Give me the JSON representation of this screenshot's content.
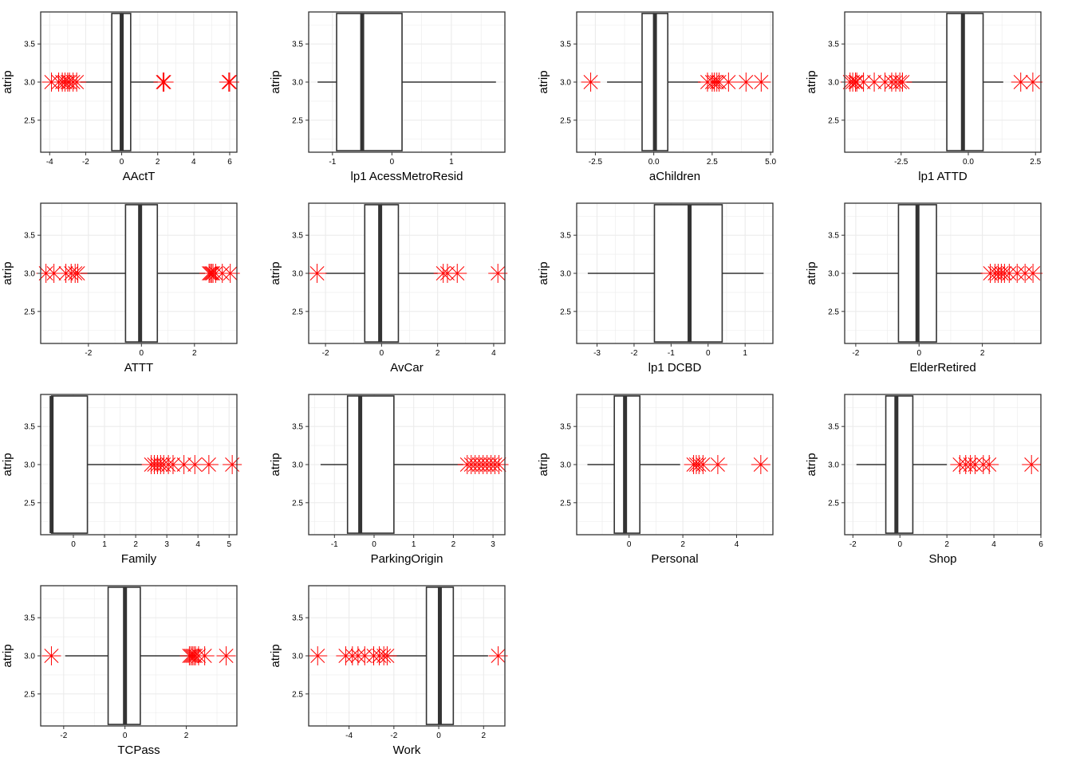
{
  "y_axis": {
    "label": "atrip",
    "ticks": [
      2.5,
      3.0,
      3.5
    ],
    "tick_labels": [
      "2.5",
      "3.0",
      "3.5"
    ],
    "range": [
      2.08,
      3.92
    ]
  },
  "style": {
    "box_color": "#333333",
    "outlier_color": "#ff0000",
    "grid_color": "#ebebeb",
    "panel_border": "#333333"
  },
  "chart_data": [
    {
      "type": "boxplot",
      "xlabel": "AActT",
      "xlim": [
        -4.5,
        6.4
      ],
      "x_ticks": [
        -4,
        -2,
        0,
        2,
        4,
        6
      ],
      "x_tick_labels": [
        "-4",
        "-2",
        "0",
        "2",
        "4",
        "6"
      ],
      "box": {
        "whisker_low": -2.3,
        "q1": -0.55,
        "median": 0.0,
        "q3": 0.5,
        "whisker_high": 2.0
      },
      "outliers": [
        -3.9,
        -3.5,
        -3.3,
        -3.15,
        -3.0,
        -2.9,
        -2.7,
        -2.5,
        2.3,
        2.35,
        5.95,
        6.0
      ]
    },
    {
      "type": "boxplot",
      "xlabel": "lp1  AcessMetroResid",
      "xlim": [
        -1.4,
        1.9
      ],
      "x_ticks": [
        -1,
        0,
        1
      ],
      "x_tick_labels": [
        "-1",
        "0",
        "1"
      ],
      "box": {
        "whisker_low": -1.25,
        "q1": -0.93,
        "median": -0.5,
        "q3": 0.17,
        "whisker_high": 1.75
      },
      "outliers": []
    },
    {
      "type": "boxplot",
      "xlabel": "aChildren",
      "xlim": [
        -3.3,
        5.1
      ],
      "x_ticks": [
        -2.5,
        0.0,
        2.5,
        5.0
      ],
      "x_tick_labels": [
        "-2.5",
        "0.0",
        "2.5",
        "5.0"
      ],
      "box": {
        "whisker_low": -2.0,
        "q1": -0.5,
        "median": 0.05,
        "q3": 0.6,
        "whisker_high": 2.0
      },
      "outliers": [
        -2.7,
        2.3,
        2.5,
        2.6,
        2.7,
        2.8,
        3.2,
        3.95,
        4.6
      ]
    },
    {
      "type": "boxplot",
      "xlabel": "lp1  ATTD",
      "xlim": [
        -4.6,
        2.7
      ],
      "x_ticks": [
        -2.5,
        0.0,
        2.5
      ],
      "x_tick_labels": [
        "-2.5",
        "0.0",
        "2.5"
      ],
      "box": {
        "whisker_low": -2.3,
        "q1": -0.8,
        "median": -0.2,
        "q3": 0.55,
        "whisker_high": 1.3
      },
      "outliers": [
        -4.4,
        -4.3,
        -4.2,
        -4.15,
        -3.9,
        -3.5,
        -3.1,
        -2.85,
        -2.7,
        -2.55,
        -2.45,
        1.95,
        2.4
      ]
    },
    {
      "type": "boxplot",
      "xlabel": "ATTT",
      "xlim": [
        -3.8,
        3.6
      ],
      "x_ticks": [
        -2,
        0,
        2
      ],
      "x_tick_labels": [
        "-2",
        "0",
        "2"
      ],
      "box": {
        "whisker_low": -2.3,
        "q1": -0.6,
        "median": -0.05,
        "q3": 0.6,
        "whisker_high": 2.4
      },
      "outliers": [
        -3.6,
        -3.3,
        -2.85,
        -2.65,
        -2.5,
        -2.4,
        2.55,
        2.6,
        2.65,
        2.7,
        2.8,
        3.05,
        3.35
      ]
    },
    {
      "type": "boxplot",
      "xlabel": "AvCar",
      "xlim": [
        -2.6,
        4.4
      ],
      "x_ticks": [
        -2,
        0,
        2,
        4
      ],
      "x_tick_labels": [
        "-2",
        "0",
        "2",
        "4"
      ],
      "box": {
        "whisker_low": -2.0,
        "q1": -0.6,
        "median": -0.05,
        "q3": 0.6,
        "whisker_high": 2.0
      },
      "outliers": [
        -2.3,
        2.2,
        2.35,
        2.7,
        4.15
      ]
    },
    {
      "type": "boxplot",
      "xlabel": "lp1  DCBD",
      "xlim": [
        -3.55,
        1.75
      ],
      "x_ticks": [
        -3,
        -2,
        -1,
        0,
        1
      ],
      "x_tick_labels": [
        "-3",
        "-2",
        "-1",
        "0",
        "1"
      ],
      "box": {
        "whisker_low": -3.25,
        "q1": -1.45,
        "median": -0.5,
        "q3": 0.38,
        "whisker_high": 1.5
      },
      "outliers": []
    },
    {
      "type": "boxplot",
      "xlabel": "ElderRetired",
      "xlim": [
        -2.35,
        3.85
      ],
      "x_ticks": [
        -2,
        0,
        2
      ],
      "x_tick_labels": [
        "-2",
        "0",
        "2"
      ],
      "box": {
        "whisker_low": -2.1,
        "q1": -0.65,
        "median": -0.05,
        "q3": 0.55,
        "whisker_high": 2.0
      },
      "outliers": [
        2.25,
        2.4,
        2.5,
        2.6,
        2.7,
        2.85,
        3.1,
        3.35,
        3.6
      ]
    },
    {
      "type": "boxplot",
      "xlabel": "Family",
      "xlim": [
        -1.05,
        5.25
      ],
      "x_ticks": [
        0,
        1,
        2,
        3,
        4,
        5
      ],
      "x_tick_labels": [
        "0",
        "1",
        "2",
        "3",
        "4",
        "5"
      ],
      "box": {
        "whisker_low": -0.7,
        "q1": -0.7,
        "median": -0.7,
        "q3": 0.45,
        "whisker_high": 2.2
      },
      "outliers": [
        2.5,
        2.6,
        2.7,
        2.8,
        2.9,
        3.05,
        3.2,
        3.55,
        3.9,
        4.35,
        5.1
      ]
    },
    {
      "type": "boxplot",
      "xlabel": "ParkingOrigin",
      "xlim": [
        -1.65,
        3.3
      ],
      "x_ticks": [
        -1,
        0,
        1,
        2,
        3
      ],
      "x_tick_labels": [
        "-1",
        "0",
        "1",
        "2",
        "3"
      ],
      "box": {
        "whisker_low": -1.35,
        "q1": -0.67,
        "median": -0.35,
        "q3": 0.5,
        "whisker_high": 2.25
      },
      "outliers": [
        2.35,
        2.45,
        2.55,
        2.65,
        2.75,
        2.85,
        2.95,
        3.05,
        3.15
      ]
    },
    {
      "type": "boxplot",
      "xlabel": "Personal",
      "xlim": [
        -1.95,
        5.35
      ],
      "x_ticks": [
        0,
        2,
        4
      ],
      "x_tick_labels": [
        "0",
        "2",
        "4"
      ],
      "box": {
        "whisker_low": -1.55,
        "q1": -0.55,
        "median": -0.15,
        "q3": 0.4,
        "whisker_high": 1.9
      },
      "outliers": [
        2.4,
        2.5,
        2.6,
        2.75,
        3.3,
        4.9
      ]
    },
    {
      "type": "boxplot",
      "xlabel": "Shop",
      "xlim": [
        -2.35,
        6.0
      ],
      "x_ticks": [
        -2,
        0,
        2,
        4,
        6
      ],
      "x_tick_labels": [
        "-2",
        "0",
        "2",
        "4",
        "6"
      ],
      "box": {
        "whisker_low": -1.85,
        "q1": -0.6,
        "median": -0.15,
        "q3": 0.55,
        "whisker_high": 2.0
      },
      "outliers": [
        2.55,
        2.8,
        3.0,
        3.2,
        3.55,
        3.8,
        5.6
      ]
    },
    {
      "type": "boxplot",
      "xlabel": "TCPass",
      "xlim": [
        -2.75,
        3.65
      ],
      "x_ticks": [
        -2,
        0,
        2
      ],
      "x_tick_labels": [
        "-2",
        "0",
        "2"
      ],
      "box": {
        "whisker_low": -1.95,
        "q1": -0.55,
        "median": 0.0,
        "q3": 0.5,
        "whisker_high": 2.05
      },
      "outliers": [
        -2.4,
        2.1,
        2.15,
        2.2,
        2.25,
        2.3,
        2.4,
        2.6,
        3.3
      ]
    },
    {
      "type": "boxplot",
      "xlabel": "Work",
      "xlim": [
        -5.8,
        2.95
      ],
      "x_ticks": [
        -4,
        -2,
        0,
        2
      ],
      "x_tick_labels": [
        "-4",
        "-2",
        "0",
        "2"
      ],
      "box": {
        "whisker_low": -2.3,
        "q1": -0.55,
        "median": 0.05,
        "q3": 0.65,
        "whisker_high": 2.2
      },
      "outliers": [
        -5.4,
        -4.15,
        -3.85,
        -3.6,
        -3.3,
        -2.9,
        -2.65,
        -2.45,
        -2.3,
        2.65
      ]
    }
  ]
}
